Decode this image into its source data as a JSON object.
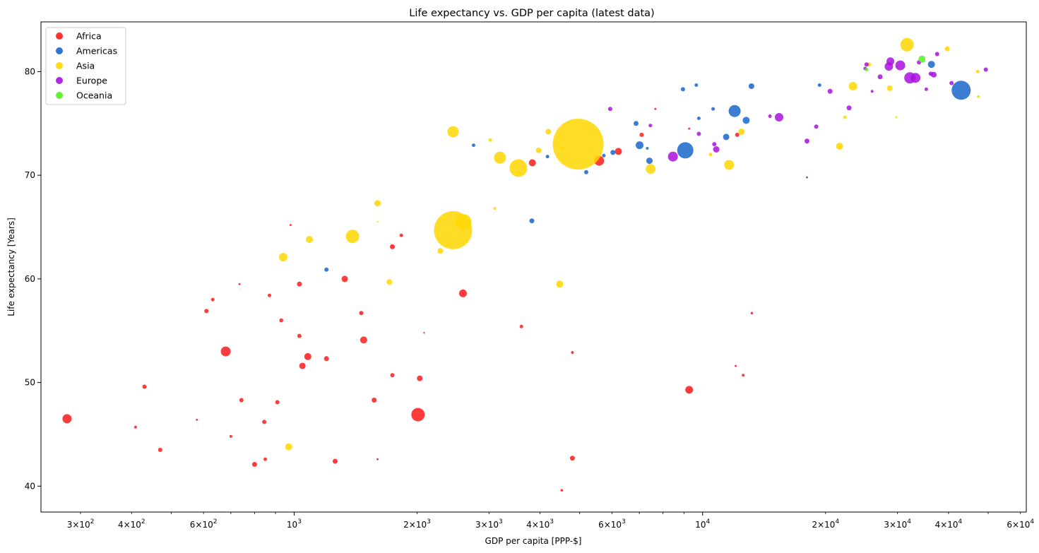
{
  "chart_data": {
    "type": "scatter",
    "title": "Life expectancy vs. GDP per capita (latest data)",
    "xlabel": "GDP per capita [PPP-$]",
    "ylabel": "Life expectancy [Years]",
    "xscale": "log",
    "xlim": [
      240,
      62000
    ],
    "ylim": [
      37.5,
      84.8
    ],
    "x_major_ticks": [
      {
        "value": 1000,
        "label": "10^3"
      },
      {
        "value": 10000,
        "label": "10^4"
      }
    ],
    "x_minor_ticks": [
      {
        "value": 300,
        "label": "3×10^2"
      },
      {
        "value": 400,
        "label": "4×10^2"
      },
      {
        "value": 600,
        "label": "6×10^2"
      },
      {
        "value": 2000,
        "label": "2×10^3"
      },
      {
        "value": 3000,
        "label": "3×10^3"
      },
      {
        "value": 4000,
        "label": "4×10^3"
      },
      {
        "value": 6000,
        "label": "6×10^3"
      },
      {
        "value": 20000,
        "label": "2×10^4"
      },
      {
        "value": 30000,
        "label": "3×10^4"
      },
      {
        "value": 40000,
        "label": "4×10^4"
      },
      {
        "value": 60000,
        "label": "6×10^4"
      }
    ],
    "x_minor_unlabeled": [
      500,
      700,
      800,
      900,
      5000,
      7000,
      8000,
      9000,
      50000
    ],
    "y_ticks": [
      40,
      50,
      60,
      70,
      80
    ],
    "legend": {
      "position": "top-left",
      "entries": [
        "Africa",
        "Americas",
        "Asia",
        "Europe",
        "Oceania"
      ]
    },
    "grid": false,
    "series": [
      {
        "name": "Africa",
        "color": "#ff1a1a",
        "points": [
          {
            "x": 278,
            "y": 46.5,
            "r": 6.5
          },
          {
            "x": 409,
            "y": 45.7,
            "r": 2
          },
          {
            "x": 430,
            "y": 49.6,
            "r": 3
          },
          {
            "x": 470,
            "y": 43.5,
            "r": 3
          },
          {
            "x": 578,
            "y": 46.4,
            "r": 1.5
          },
          {
            "x": 610,
            "y": 56.9,
            "r": 3
          },
          {
            "x": 632,
            "y": 58.0,
            "r": 2.5
          },
          {
            "x": 680,
            "y": 53.0,
            "r": 7
          },
          {
            "x": 700,
            "y": 44.8,
            "r": 2
          },
          {
            "x": 735,
            "y": 59.5,
            "r": 1.5
          },
          {
            "x": 743,
            "y": 48.3,
            "r": 3
          },
          {
            "x": 800,
            "y": 42.1,
            "r": 3.5
          },
          {
            "x": 845,
            "y": 46.2,
            "r": 3
          },
          {
            "x": 850,
            "y": 42.6,
            "r": 2.5
          },
          {
            "x": 870,
            "y": 58.4,
            "r": 2.5
          },
          {
            "x": 910,
            "y": 48.1,
            "r": 3
          },
          {
            "x": 930,
            "y": 56.0,
            "r": 2.8
          },
          {
            "x": 980,
            "y": 65.2,
            "r": 1.5
          },
          {
            "x": 1030,
            "y": 59.5,
            "r": 3.5
          },
          {
            "x": 1030,
            "y": 54.5,
            "r": 3
          },
          {
            "x": 1048,
            "y": 51.6,
            "r": 4.5
          },
          {
            "x": 1080,
            "y": 52.5,
            "r": 5
          },
          {
            "x": 1200,
            "y": 52.3,
            "r": 3.5
          },
          {
            "x": 1260,
            "y": 42.4,
            "r": 3.5
          },
          {
            "x": 1330,
            "y": 60.0,
            "r": 4.5
          },
          {
            "x": 1460,
            "y": 56.7,
            "r": 3
          },
          {
            "x": 1480,
            "y": 54.1,
            "r": 5
          },
          {
            "x": 1570,
            "y": 48.3,
            "r": 3.5
          },
          {
            "x": 1600,
            "y": 42.6,
            "r": 1.5
          },
          {
            "x": 1740,
            "y": 63.1,
            "r": 3.5
          },
          {
            "x": 1740,
            "y": 50.7,
            "r": 3
          },
          {
            "x": 1830,
            "y": 64.2,
            "r": 2.5
          },
          {
            "x": 2010,
            "y": 46.9,
            "r": 9.5
          },
          {
            "x": 2030,
            "y": 50.4,
            "r": 4
          },
          {
            "x": 2080,
            "y": 54.8,
            "r": 1.2
          },
          {
            "x": 2590,
            "y": 58.6,
            "r": 5.5
          },
          {
            "x": 3600,
            "y": 55.4,
            "r": 2.5
          },
          {
            "x": 3830,
            "y": 71.2,
            "r": 5
          },
          {
            "x": 4520,
            "y": 39.6,
            "r": 1.8
          },
          {
            "x": 4800,
            "y": 42.7,
            "r": 3.5
          },
          {
            "x": 4800,
            "y": 52.9,
            "r": 2
          },
          {
            "x": 5580,
            "y": 71.4,
            "r": 7
          },
          {
            "x": 6220,
            "y": 72.3,
            "r": 5
          },
          {
            "x": 7090,
            "y": 73.9,
            "r": 3
          },
          {
            "x": 7660,
            "y": 76.4,
            "r": 1.5
          },
          {
            "x": 9270,
            "y": 49.3,
            "r": 5.5
          },
          {
            "x": 9270,
            "y": 74.5,
            "r": 1.5
          },
          {
            "x": 12050,
            "y": 51.6,
            "r": 1.5
          },
          {
            "x": 12150,
            "y": 73.9,
            "r": 3
          },
          {
            "x": 12570,
            "y": 50.7,
            "r": 2
          },
          {
            "x": 13200,
            "y": 56.7,
            "r": 1.8
          }
        ]
      },
      {
        "name": "Americas",
        "color": "#1a66cc",
        "points": [
          {
            "x": 1200,
            "y": 60.9,
            "r": 3
          },
          {
            "x": 2750,
            "y": 72.9,
            "r": 2.5
          },
          {
            "x": 3820,
            "y": 65.6,
            "r": 3.5
          },
          {
            "x": 4170,
            "y": 71.8,
            "r": 2.5
          },
          {
            "x": 5190,
            "y": 70.3,
            "r": 3
          },
          {
            "x": 5730,
            "y": 71.9,
            "r": 2.5
          },
          {
            "x": 6030,
            "y": 72.2,
            "r": 3.5
          },
          {
            "x": 6870,
            "y": 75.0,
            "r": 3.5
          },
          {
            "x": 7010,
            "y": 72.9,
            "r": 5.5
          },
          {
            "x": 7320,
            "y": 72.6,
            "r": 2
          },
          {
            "x": 7410,
            "y": 71.4,
            "r": 4.5
          },
          {
            "x": 8950,
            "y": 78.3,
            "r": 3
          },
          {
            "x": 9070,
            "y": 72.4,
            "r": 11.5
          },
          {
            "x": 9650,
            "y": 78.7,
            "r": 2.5
          },
          {
            "x": 9790,
            "y": 75.5,
            "r": 2.5
          },
          {
            "x": 10610,
            "y": 76.4,
            "r": 2.5
          },
          {
            "x": 11420,
            "y": 73.7,
            "r": 4.5
          },
          {
            "x": 11980,
            "y": 76.2,
            "r": 8.5
          },
          {
            "x": 12780,
            "y": 75.3,
            "r": 5
          },
          {
            "x": 13170,
            "y": 78.6,
            "r": 4
          },
          {
            "x": 18010,
            "y": 69.8,
            "r": 1.5
          },
          {
            "x": 19330,
            "y": 78.7,
            "r": 2.5
          },
          {
            "x": 36320,
            "y": 80.7,
            "r": 5
          },
          {
            "x": 42950,
            "y": 78.2,
            "r": 13.5
          }
        ]
      },
      {
        "name": "Asia",
        "color": "#ffd700",
        "points": [
          {
            "x": 940,
            "y": 62.1,
            "r": 6
          },
          {
            "x": 970,
            "y": 43.8,
            "r": 5
          },
          {
            "x": 1090,
            "y": 63.8,
            "r": 5
          },
          {
            "x": 1390,
            "y": 64.1,
            "r": 9.5
          },
          {
            "x": 1600,
            "y": 67.3,
            "r": 4.5
          },
          {
            "x": 1600,
            "y": 65.5,
            "r": 1.2
          },
          {
            "x": 1710,
            "y": 59.7,
            "r": 4
          },
          {
            "x": 2280,
            "y": 62.7,
            "r": 4
          },
          {
            "x": 2450,
            "y": 74.2,
            "r": 8
          },
          {
            "x": 2450,
            "y": 64.7,
            "r": 27
          },
          {
            "x": 2600,
            "y": 65.5,
            "r": 11
          },
          {
            "x": 3020,
            "y": 73.4,
            "r": 2.5
          },
          {
            "x": 3100,
            "y": 66.8,
            "r": 2
          },
          {
            "x": 3190,
            "y": 71.7,
            "r": 8.5
          },
          {
            "x": 3540,
            "y": 70.7,
            "r": 12.5
          },
          {
            "x": 3550,
            "y": 70.2,
            "r": 2.5
          },
          {
            "x": 3970,
            "y": 72.4,
            "r": 4
          },
          {
            "x": 4190,
            "y": 74.2,
            "r": 4
          },
          {
            "x": 4470,
            "y": 59.5,
            "r": 5
          },
          {
            "x": 4520,
            "y": 72.6,
            "r": 2
          },
          {
            "x": 4960,
            "y": 73.0,
            "r": 36
          },
          {
            "x": 7460,
            "y": 70.6,
            "r": 7
          },
          {
            "x": 10460,
            "y": 72.0,
            "r": 2.5
          },
          {
            "x": 11610,
            "y": 71.0,
            "r": 7
          },
          {
            "x": 12450,
            "y": 74.2,
            "r": 4.5
          },
          {
            "x": 21650,
            "y": 72.8,
            "r": 5
          },
          {
            "x": 22320,
            "y": 75.6,
            "r": 2.5
          },
          {
            "x": 23350,
            "y": 78.6,
            "r": 6
          },
          {
            "x": 25520,
            "y": 80.7,
            "r": 3
          },
          {
            "x": 28720,
            "y": 78.4,
            "r": 4
          },
          {
            "x": 29800,
            "y": 75.6,
            "r": 1.5
          },
          {
            "x": 31660,
            "y": 82.6,
            "r": 9.5
          },
          {
            "x": 39720,
            "y": 82.2,
            "r": 3.5
          },
          {
            "x": 47140,
            "y": 80.0,
            "r": 2.5
          },
          {
            "x": 47310,
            "y": 77.6,
            "r": 2
          }
        ]
      },
      {
        "name": "Europe",
        "color": "#aa11dd",
        "points": [
          {
            "x": 5940,
            "y": 76.4,
            "r": 3
          },
          {
            "x": 7450,
            "y": 74.8,
            "r": 2.5
          },
          {
            "x": 8460,
            "y": 71.8,
            "r": 7
          },
          {
            "x": 9790,
            "y": 74.0,
            "r": 3
          },
          {
            "x": 10680,
            "y": 73.0,
            "r": 3
          },
          {
            "x": 10800,
            "y": 72.5,
            "r": 4.5
          },
          {
            "x": 14620,
            "y": 75.7,
            "r": 2.5
          },
          {
            "x": 15390,
            "y": 75.6,
            "r": 6
          },
          {
            "x": 18010,
            "y": 73.3,
            "r": 3.5
          },
          {
            "x": 18970,
            "y": 74.7,
            "r": 3
          },
          {
            "x": 20510,
            "y": 78.1,
            "r": 3.5
          },
          {
            "x": 22830,
            "y": 76.5,
            "r": 3.5
          },
          {
            "x": 25200,
            "y": 80.7,
            "r": 3
          },
          {
            "x": 27200,
            "y": 79.5,
            "r": 3.5
          },
          {
            "x": 28570,
            "y": 80.5,
            "r": 6
          },
          {
            "x": 28820,
            "y": 81.0,
            "r": 5.5
          },
          {
            "x": 30470,
            "y": 80.6,
            "r": 7
          },
          {
            "x": 32170,
            "y": 79.4,
            "r": 8
          },
          {
            "x": 33200,
            "y": 79.4,
            "r": 7
          },
          {
            "x": 33860,
            "y": 80.9,
            "r": 3
          },
          {
            "x": 35280,
            "y": 78.3,
            "r": 2.5
          },
          {
            "x": 36180,
            "y": 79.8,
            "r": 3
          },
          {
            "x": 36800,
            "y": 79.7,
            "r": 4
          },
          {
            "x": 37500,
            "y": 81.7,
            "r": 3
          },
          {
            "x": 40680,
            "y": 78.9,
            "r": 3
          },
          {
            "x": 49360,
            "y": 80.2,
            "r": 3
          },
          {
            "x": 25000,
            "y": 80.3,
            "r": 2.5
          },
          {
            "x": 26000,
            "y": 78.1,
            "r": 2
          }
        ]
      },
      {
        "name": "Oceania",
        "color": "#55ee22",
        "points": [
          {
            "x": 25190,
            "y": 80.2,
            "r": 2.5
          },
          {
            "x": 34440,
            "y": 81.2,
            "r": 5
          }
        ]
      }
    ]
  }
}
